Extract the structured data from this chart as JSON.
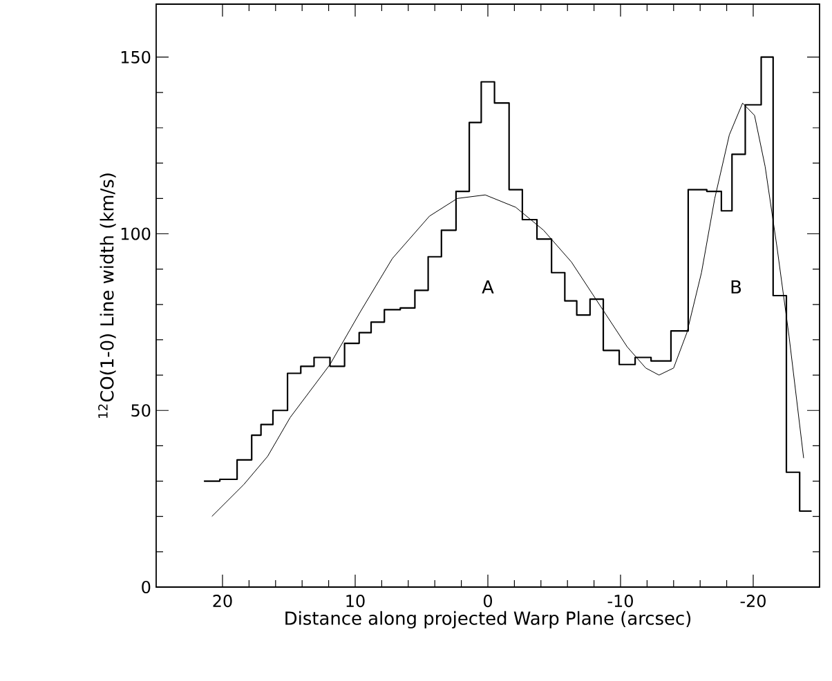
{
  "chart_data": {
    "type": "step",
    "xlabel": "Distance along projected Warp Plane (arcsec)",
    "ylabel": "$^{12}$CO(1-0) Line width (km/s)",
    "xlim": [
      25,
      -25
    ],
    "ylim": [
      0,
      165
    ],
    "xticks": [
      20,
      10,
      0,
      -10,
      -20
    ],
    "yticks": [
      0,
      50,
      100,
      150
    ],
    "marker": "none",
    "series": [
      {
        "color": "#000000",
        "line_style": "solid",
        "x": [
          21.4,
          20.2,
          18.9,
          17.8,
          17.1,
          16.2,
          15.1,
          14.1,
          13.1,
          11.9,
          10.8,
          9.7,
          8.8,
          7.8,
          6.6,
          5.5,
          4.5,
          3.5,
          2.4,
          1.4,
          0.5,
          -0.5,
          -1.6,
          -2.6,
          -3.7,
          -4.8,
          -5.8,
          -6.7,
          -7.7,
          -8.7,
          -9.9,
          -11.1,
          -12.3,
          -13.8,
          -15.1,
          -16.5,
          -17.6,
          -18.4,
          -19.4,
          -20.6,
          -21.5,
          -22.5,
          -23.5,
          -24.4
        ],
        "values": [
          30,
          30.5,
          36,
          43,
          46,
          50,
          60.5,
          62.5,
          65,
          62.5,
          69,
          72,
          75,
          78.5,
          79,
          84,
          93.5,
          101,
          112,
          131.5,
          143,
          137,
          112.5,
          104,
          98.5,
          89,
          81,
          77,
          81.5,
          67,
          63,
          65,
          64,
          72.5,
          112.5,
          112,
          106.5,
          122.5,
          136.5,
          150,
          82.5,
          32.5,
          21.5,
          21.5
        ]
      },
      {
        "type": "line",
        "color": "#000000",
        "line_style": "solid",
        "x": [
          20.8,
          18.4,
          16.6,
          14.9,
          11.9,
          9.6,
          7.2,
          4.4,
          2.3,
          0.2,
          -2.1,
          -4.2,
          -6.3,
          -8.4,
          -10.5,
          -11.9,
          -12.9,
          -14,
          -15,
          -16.1,
          -17.1,
          -18.2,
          -19.2,
          -20.1,
          -20.9,
          -21.8,
          -22.7,
          -23.8
        ],
        "values": [
          20,
          29,
          37,
          48,
          63,
          78,
          93,
          105,
          110,
          111,
          107.5,
          101,
          92,
          80,
          68,
          62,
          60,
          62,
          72,
          89,
          110,
          128,
          137,
          133.5,
          119,
          96,
          71,
          36.5
        ]
      }
    ],
    "annotations": [
      "A",
      "B"
    ]
  }
}
